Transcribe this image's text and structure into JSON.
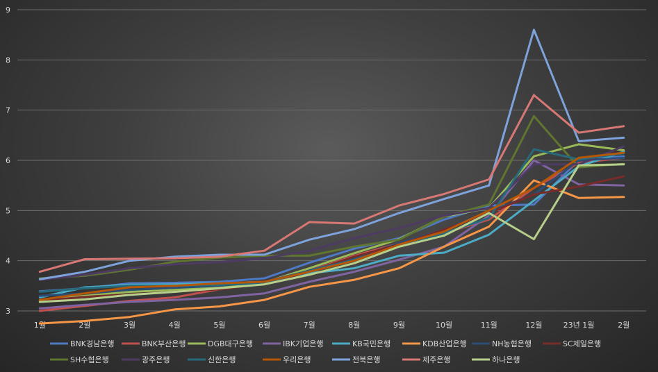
{
  "chart_data": {
    "type": "line",
    "title": "",
    "xlabel": "",
    "ylabel": "",
    "ylim": [
      3,
      9
    ],
    "yticks": [
      3,
      4,
      5,
      6,
      7,
      8,
      9
    ],
    "grid": true,
    "legend_position": "bottom",
    "categories": [
      "1월",
      "2월",
      "3월",
      "4월",
      "5월",
      "6월",
      "7월",
      "8월",
      "9월",
      "10월",
      "11월",
      "12월",
      "23년 1월",
      "2월"
    ],
    "series": [
      {
        "name": "BNK경남은행",
        "color": "#4e79c4",
        "values": [
          3.39,
          3.45,
          3.55,
          3.56,
          3.58,
          3.65,
          3.96,
          4.24,
          4.45,
          4.82,
          5.1,
          5.12,
          6.0,
          6.08
        ]
      },
      {
        "name": "BNK부산은행",
        "color": "#c0504d",
        "values": [
          3.0,
          3.1,
          3.2,
          3.27,
          3.43,
          3.55,
          3.8,
          4.1,
          4.35,
          4.55,
          4.82,
          5.45,
          5.95,
          6.05
        ]
      },
      {
        "name": "DGB대구은행",
        "color": "#9bbb59",
        "values": [
          3.2,
          3.3,
          3.38,
          3.42,
          3.48,
          3.57,
          3.85,
          4.15,
          4.43,
          4.88,
          5.05,
          6.08,
          6.32,
          6.2
        ]
      },
      {
        "name": "IBK기업은행",
        "color": "#8064a2",
        "values": [
          3.05,
          3.12,
          3.18,
          3.22,
          3.27,
          3.35,
          3.58,
          3.78,
          4.02,
          4.28,
          4.9,
          6.0,
          5.52,
          5.5
        ]
      },
      {
        "name": "KB국민은행",
        "color": "#4bacc6",
        "values": [
          3.27,
          3.47,
          3.52,
          3.53,
          3.55,
          3.58,
          3.75,
          3.85,
          4.1,
          4.16,
          4.52,
          5.2,
          5.88,
          6.17
        ]
      },
      {
        "name": "KDB산업은행",
        "color": "#f79646",
        "values": [
          2.75,
          2.8,
          2.88,
          3.03,
          3.09,
          3.22,
          3.48,
          3.62,
          3.85,
          4.28,
          4.68,
          5.6,
          5.25,
          5.27
        ]
      },
      {
        "name": "NH농협은행",
        "color": "#2c4d75",
        "values": [
          3.3,
          3.35,
          3.42,
          3.46,
          3.5,
          3.58,
          3.8,
          4.05,
          4.35,
          4.62,
          4.98,
          5.32,
          6.0,
          6.05
        ]
      },
      {
        "name": "SC제일은행",
        "color": "#772c2a",
        "values": [
          3.2,
          3.28,
          3.33,
          3.38,
          3.43,
          3.54,
          3.78,
          4.08,
          4.32,
          4.62,
          4.95,
          5.32,
          5.48,
          5.68
        ]
      },
      {
        "name": "SH수협은행",
        "color": "#5f7530",
        "values": [
          3.65,
          3.7,
          3.82,
          3.98,
          4.06,
          4.1,
          4.1,
          4.28,
          4.42,
          4.88,
          5.12,
          6.88,
          5.86,
          5.93
        ]
      },
      {
        "name": "광주은행",
        "color": "#4d3b62",
        "values": [
          3.62,
          3.72,
          3.85,
          3.93,
          3.97,
          4.05,
          4.2,
          4.45,
          4.65,
          4.9,
          5.05,
          5.92,
          5.92,
          6.28
        ]
      },
      {
        "name": "신한은행",
        "color": "#276a7c",
        "values": [
          3.38,
          3.45,
          3.5,
          3.5,
          3.52,
          3.55,
          3.8,
          4.02,
          4.3,
          4.55,
          4.85,
          6.22,
          6.02,
          6.14
        ]
      },
      {
        "name": "우리은행",
        "color": "#b65708",
        "values": [
          3.22,
          3.35,
          3.47,
          3.5,
          3.55,
          3.58,
          3.78,
          4.0,
          4.32,
          4.58,
          5.0,
          5.45,
          6.05,
          6.15
        ]
      },
      {
        "name": "전북은행",
        "color": "#7ea2dc",
        "values": [
          3.63,
          3.78,
          4.0,
          4.08,
          4.12,
          4.12,
          4.42,
          4.63,
          4.95,
          5.23,
          5.5,
          8.6,
          6.38,
          6.45
        ]
      },
      {
        "name": "제주은행",
        "color": "#d87875",
        "values": [
          3.78,
          4.03,
          4.04,
          4.05,
          4.08,
          4.2,
          4.77,
          4.74,
          5.1,
          5.33,
          5.62,
          7.3,
          6.55,
          6.68
        ]
      },
      {
        "name": "하나은행",
        "color": "#b6d08b",
        "values": [
          3.18,
          3.23,
          3.32,
          3.38,
          3.45,
          3.53,
          3.72,
          3.95,
          4.28,
          4.5,
          4.95,
          4.43,
          5.9,
          5.92
        ]
      }
    ]
  }
}
